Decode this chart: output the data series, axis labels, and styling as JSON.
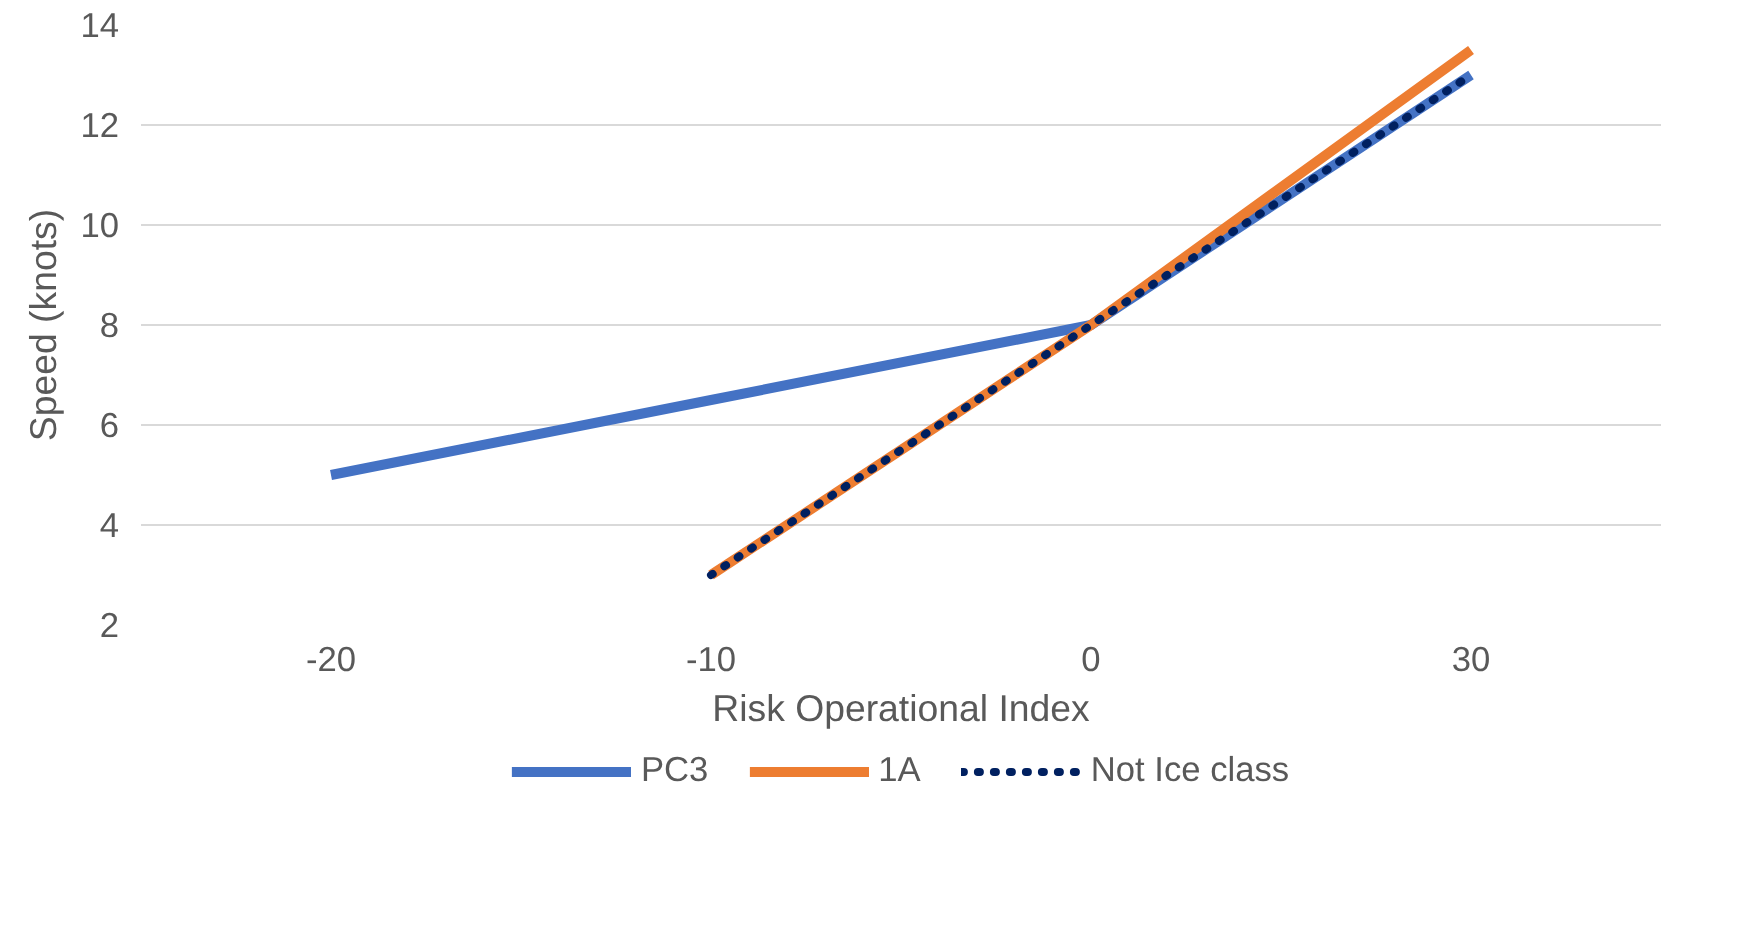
{
  "chart_data": {
    "type": "line",
    "xlabel": "Risk Operational Index",
    "ylabel": "Speed (knots)",
    "categories": [
      "-20",
      "-10",
      "0",
      "30"
    ],
    "series": [
      {
        "name": "PC3",
        "color": "#4472c4",
        "values": [
          5,
          6.5,
          8,
          13
        ],
        "line_style": "solid"
      },
      {
        "name": "1A",
        "color": "#ed7d31",
        "values": [
          null,
          3,
          8,
          13.5
        ],
        "line_style": "solid"
      },
      {
        "name": "Not Ice class",
        "color": "#002060",
        "values": [
          null,
          3,
          8,
          13
        ],
        "line_style": "dotted"
      }
    ],
    "ylim": [
      2,
      14
    ],
    "yticks": [
      2,
      4,
      6,
      8,
      10,
      12,
      14
    ],
    "grid": "y",
    "legend": "bottom",
    "marker": "none"
  }
}
